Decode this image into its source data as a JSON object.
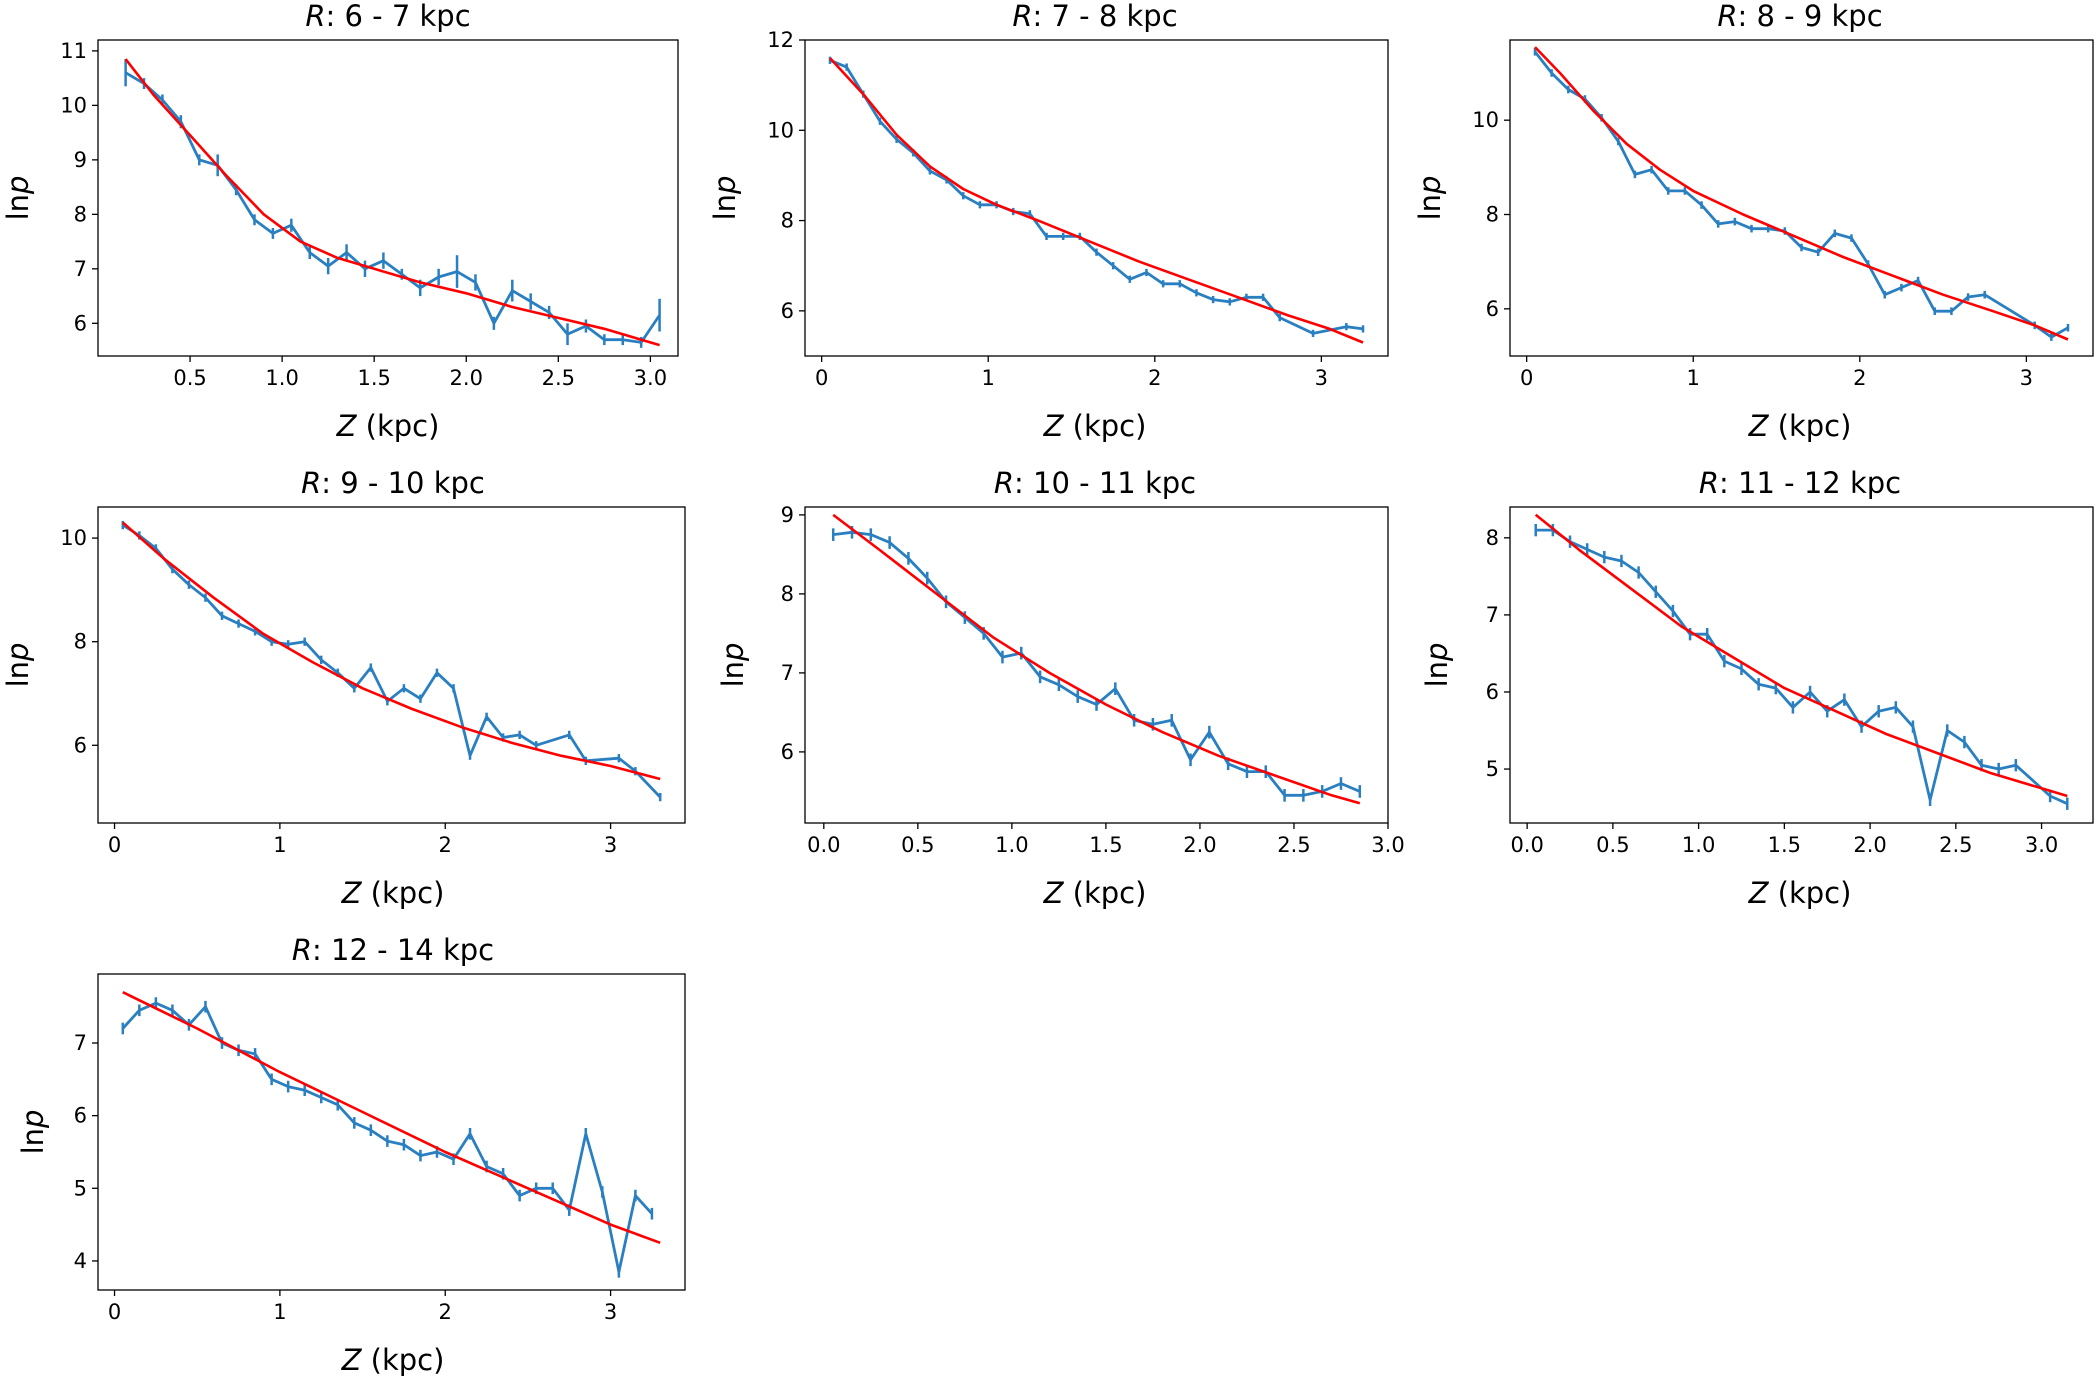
{
  "figure": {
    "xlabel_var": "Z",
    "xlabel_unit": " (kpc)",
    "ylabel_prefix": "ln",
    "ylabel_var": "p",
    "title_prefix": "R",
    "colors": {
      "data": "#2a7fc1",
      "fit": "#ff0000",
      "axes": "#000000"
    }
  },
  "chart_data": [
    {
      "type": "line",
      "title": "R: 6 - 7 kpc",
      "title_range": ": 6 - 7 kpc",
      "xlabel": "Z (kpc)",
      "ylabel": "lnp",
      "xlim": [
        0.0,
        3.15
      ],
      "ylim": [
        5.4,
        11.2
      ],
      "xticks": [
        0.5,
        1.0,
        1.5,
        2.0,
        2.5,
        3.0
      ],
      "xtick_labels": [
        "0.5",
        "1.0",
        "1.5",
        "2.0",
        "2.5",
        "3.0"
      ],
      "yticks": [
        6,
        7,
        8,
        9,
        10,
        11
      ],
      "ytick_labels": [
        "6",
        "7",
        "8",
        "9",
        "10",
        "11"
      ],
      "series": [
        {
          "name": "data",
          "x": [
            0.15,
            0.25,
            0.35,
            0.45,
            0.55,
            0.65,
            0.75,
            0.85,
            0.95,
            1.05,
            1.15,
            1.25,
            1.35,
            1.45,
            1.55,
            1.65,
            1.75,
            1.85,
            1.95,
            2.05,
            2.15,
            2.25,
            2.35,
            2.45,
            2.55,
            2.65,
            2.75,
            2.85,
            2.95,
            3.05
          ],
          "y": [
            10.6,
            10.4,
            10.1,
            9.7,
            9.0,
            8.9,
            8.45,
            7.9,
            7.65,
            7.8,
            7.3,
            7.05,
            7.3,
            7.0,
            7.15,
            6.9,
            6.65,
            6.85,
            6.95,
            6.75,
            6.0,
            6.6,
            6.4,
            6.2,
            5.8,
            5.95,
            5.7,
            5.7,
            5.65,
            6.15
          ],
          "yerr": [
            0.25,
            0.1,
            0.1,
            0.12,
            0.1,
            0.2,
            0.1,
            0.1,
            0.1,
            0.12,
            0.12,
            0.15,
            0.15,
            0.15,
            0.15,
            0.1,
            0.15,
            0.15,
            0.3,
            0.15,
            0.12,
            0.2,
            0.15,
            0.12,
            0.2,
            0.12,
            0.1,
            0.1,
            0.1,
            0.3
          ]
        },
        {
          "name": "fit",
          "x": [
            0.15,
            0.3,
            0.5,
            0.7,
            0.9,
            1.1,
            1.3,
            1.5,
            1.75,
            2.0,
            2.25,
            2.5,
            2.75,
            3.05
          ],
          "y": [
            10.85,
            10.2,
            9.45,
            8.7,
            8.0,
            7.5,
            7.2,
            7.0,
            6.75,
            6.55,
            6.3,
            6.1,
            5.9,
            5.6
          ]
        }
      ]
    },
    {
      "type": "line",
      "title": "R: 7 - 8 kpc",
      "title_range": ": 7 - 8 kpc",
      "xlabel": "Z (kpc)",
      "ylabel": "lnp",
      "xlim": [
        -0.1,
        3.4
      ],
      "ylim": [
        5.0,
        12.0
      ],
      "xticks": [
        0,
        1,
        2,
        3
      ],
      "xtick_labels": [
        "0",
        "1",
        "2",
        "3"
      ],
      "yticks": [
        6,
        8,
        10,
        12
      ],
      "ytick_labels": [
        "6",
        "8",
        "10",
        "12"
      ],
      "series": [
        {
          "name": "data",
          "x": [
            0.05,
            0.15,
            0.25,
            0.35,
            0.45,
            0.55,
            0.65,
            0.75,
            0.85,
            0.95,
            1.05,
            1.15,
            1.25,
            1.35,
            1.45,
            1.55,
            1.65,
            1.75,
            1.85,
            1.95,
            2.05,
            2.15,
            2.25,
            2.35,
            2.45,
            2.55,
            2.65,
            2.75,
            2.95,
            3.15,
            3.25
          ],
          "y": [
            11.55,
            11.4,
            10.8,
            10.2,
            9.8,
            9.5,
            9.1,
            8.9,
            8.55,
            8.35,
            8.35,
            8.2,
            8.15,
            7.65,
            7.65,
            7.65,
            7.3,
            7.0,
            6.7,
            6.85,
            6.6,
            6.6,
            6.4,
            6.25,
            6.2,
            6.3,
            6.3,
            5.85,
            5.5,
            5.65,
            5.6
          ]
        },
        {
          "name": "fit",
          "x": [
            0.05,
            0.25,
            0.45,
            0.65,
            0.85,
            1.05,
            1.3,
            1.6,
            1.9,
            2.2,
            2.5,
            2.8,
            3.05,
            3.25
          ],
          "y": [
            11.6,
            10.8,
            9.9,
            9.2,
            8.7,
            8.35,
            8.0,
            7.55,
            7.1,
            6.7,
            6.3,
            5.9,
            5.6,
            5.3
          ]
        }
      ]
    },
    {
      "type": "line",
      "title": "R: 8 - 9 kpc",
      "title_range": ": 8 - 9 kpc",
      "xlabel": "Z (kpc)",
      "ylabel": "lnp",
      "xlim": [
        -0.1,
        3.4
      ],
      "ylim": [
        5.0,
        11.7
      ],
      "xticks": [
        0,
        1,
        2,
        3
      ],
      "xtick_labels": [
        "0",
        "1",
        "2",
        "3"
      ],
      "yticks": [
        6,
        8,
        10
      ],
      "ytick_labels": [
        "6",
        "8",
        "10"
      ],
      "series": [
        {
          "name": "data",
          "x": [
            0.05,
            0.15,
            0.25,
            0.35,
            0.45,
            0.55,
            0.65,
            0.75,
            0.85,
            0.95,
            1.05,
            1.15,
            1.25,
            1.35,
            1.45,
            1.55,
            1.65,
            1.75,
            1.85,
            1.95,
            2.05,
            2.15,
            2.25,
            2.35,
            2.45,
            2.55,
            2.65,
            2.75,
            3.05,
            3.15,
            3.25
          ],
          "y": [
            11.45,
            11.0,
            10.65,
            10.45,
            10.05,
            9.55,
            8.85,
            8.95,
            8.5,
            8.5,
            8.2,
            7.8,
            7.85,
            7.7,
            7.7,
            7.65,
            7.3,
            7.2,
            7.6,
            7.5,
            6.95,
            6.3,
            6.45,
            6.6,
            5.95,
            5.95,
            6.25,
            6.3,
            5.65,
            5.4,
            5.6
          ]
        },
        {
          "name": "fit",
          "x": [
            0.05,
            0.2,
            0.4,
            0.6,
            0.8,
            1.0,
            1.3,
            1.6,
            1.9,
            2.2,
            2.5,
            2.8,
            3.05,
            3.25
          ],
          "y": [
            11.55,
            11.0,
            10.2,
            9.5,
            8.95,
            8.5,
            8.0,
            7.55,
            7.1,
            6.7,
            6.3,
            5.95,
            5.65,
            5.35
          ]
        }
      ]
    },
    {
      "type": "line",
      "title": "R: 9 - 10 kpc",
      "title_range": ": 9 - 10 kpc",
      "xlabel": "Z (kpc)",
      "ylabel": "lnp",
      "xlim": [
        -0.1,
        3.45
      ],
      "ylim": [
        4.5,
        10.6
      ],
      "xticks": [
        0,
        1,
        2,
        3
      ],
      "xtick_labels": [
        "0",
        "1",
        "2",
        "3"
      ],
      "yticks": [
        6,
        8,
        10
      ],
      "ytick_labels": [
        "6",
        "8",
        "10"
      ],
      "series": [
        {
          "name": "data",
          "x": [
            0.05,
            0.15,
            0.25,
            0.35,
            0.45,
            0.55,
            0.65,
            0.75,
            0.85,
            0.95,
            1.05,
            1.15,
            1.25,
            1.35,
            1.45,
            1.55,
            1.65,
            1.75,
            1.85,
            1.95,
            2.05,
            2.15,
            2.25,
            2.35,
            2.45,
            2.55,
            2.75,
            2.85,
            3.05,
            3.15,
            3.3
          ],
          "y": [
            10.25,
            10.05,
            9.8,
            9.4,
            9.1,
            8.85,
            8.5,
            8.35,
            8.2,
            8.0,
            7.95,
            8.0,
            7.65,
            7.4,
            7.1,
            7.5,
            6.85,
            7.1,
            6.9,
            7.4,
            7.1,
            5.8,
            6.55,
            6.15,
            6.2,
            6.0,
            6.2,
            5.7,
            5.75,
            5.5,
            5.0
          ]
        },
        {
          "name": "fit",
          "x": [
            0.05,
            0.3,
            0.6,
            0.9,
            1.2,
            1.5,
            1.8,
            2.1,
            2.4,
            2.7,
            3.0,
            3.3
          ],
          "y": [
            10.3,
            9.6,
            8.85,
            8.15,
            7.6,
            7.1,
            6.7,
            6.35,
            6.05,
            5.8,
            5.6,
            5.35
          ]
        }
      ]
    },
    {
      "type": "line",
      "title": "R: 10 - 11 kpc",
      "title_range": ": 10 - 11 kpc",
      "xlabel": "Z (kpc)",
      "ylabel": "lnp",
      "xlim": [
        -0.1,
        3.0
      ],
      "ylim": [
        5.1,
        9.1
      ],
      "xticks": [
        0.0,
        0.5,
        1.0,
        1.5,
        2.0,
        2.5,
        3.0
      ],
      "xtick_labels": [
        "0.0",
        "0.5",
        "1.0",
        "1.5",
        "2.0",
        "2.5",
        "3.0"
      ],
      "yticks": [
        6,
        7,
        8,
        9
      ],
      "ytick_labels": [
        "6",
        "7",
        "8",
        "9"
      ],
      "series": [
        {
          "name": "data",
          "x": [
            0.05,
            0.15,
            0.25,
            0.35,
            0.45,
            0.55,
            0.65,
            0.75,
            0.85,
            0.95,
            1.05,
            1.15,
            1.25,
            1.35,
            1.45,
            1.55,
            1.65,
            1.75,
            1.85,
            1.95,
            2.05,
            2.15,
            2.25,
            2.35,
            2.45,
            2.55,
            2.65,
            2.75,
            2.85
          ],
          "y": [
            8.75,
            8.78,
            8.75,
            8.65,
            8.45,
            8.2,
            7.9,
            7.7,
            7.5,
            7.2,
            7.25,
            6.95,
            6.85,
            6.7,
            6.6,
            6.8,
            6.4,
            6.35,
            6.4,
            5.9,
            6.25,
            5.85,
            5.75,
            5.75,
            5.45,
            5.45,
            5.5,
            5.6,
            5.5
          ]
        },
        {
          "name": "fit",
          "x": [
            0.05,
            0.3,
            0.6,
            0.9,
            1.2,
            1.5,
            1.8,
            2.1,
            2.4,
            2.7,
            2.85
          ],
          "y": [
            9.0,
            8.55,
            8.0,
            7.45,
            7.0,
            6.6,
            6.25,
            5.95,
            5.7,
            5.45,
            5.35
          ]
        }
      ]
    },
    {
      "type": "line",
      "title": "R: 11 - 12 kpc",
      "title_range": ": 11 - 12 kpc",
      "xlabel": "Z (kpc)",
      "ylabel": "lnp",
      "xlim": [
        -0.1,
        3.3
      ],
      "ylim": [
        4.3,
        8.4
      ],
      "xticks": [
        0.0,
        0.5,
        1.0,
        1.5,
        2.0,
        2.5,
        3.0
      ],
      "xtick_labels": [
        "0.0",
        "0.5",
        "1.0",
        "1.5",
        "2.0",
        "2.5",
        "3.0"
      ],
      "yticks": [
        5,
        6,
        7,
        8
      ],
      "ytick_labels": [
        "5",
        "6",
        "7",
        "8"
      ],
      "series": [
        {
          "name": "data",
          "x": [
            0.05,
            0.15,
            0.25,
            0.35,
            0.45,
            0.55,
            0.65,
            0.75,
            0.85,
            0.95,
            1.05,
            1.15,
            1.25,
            1.35,
            1.45,
            1.55,
            1.65,
            1.75,
            1.85,
            1.95,
            2.05,
            2.15,
            2.25,
            2.35,
            2.45,
            2.55,
            2.65,
            2.75,
            2.85,
            3.05,
            3.15
          ],
          "y": [
            8.1,
            8.1,
            7.95,
            7.85,
            7.75,
            7.7,
            7.55,
            7.3,
            7.05,
            6.75,
            6.75,
            6.4,
            6.3,
            6.1,
            6.05,
            5.8,
            6.0,
            5.75,
            5.9,
            5.55,
            5.75,
            5.8,
            5.55,
            4.6,
            5.5,
            5.35,
            5.05,
            5.0,
            5.05,
            4.65,
            4.55
          ]
        },
        {
          "name": "fit",
          "x": [
            0.05,
            0.3,
            0.6,
            0.9,
            1.2,
            1.5,
            1.8,
            2.1,
            2.4,
            2.7,
            3.0,
            3.15
          ],
          "y": [
            8.3,
            7.85,
            7.35,
            6.85,
            6.45,
            6.05,
            5.75,
            5.45,
            5.2,
            4.95,
            4.75,
            4.65
          ]
        }
      ]
    },
    {
      "type": "line",
      "title": "R: 12 - 14 kpc",
      "title_range": ": 12 - 14 kpc",
      "xlabel": "Z (kpc)",
      "ylabel": "lnp",
      "xlim": [
        -0.1,
        3.45
      ],
      "ylim": [
        3.6,
        7.95
      ],
      "xticks": [
        0,
        1,
        2,
        3
      ],
      "xtick_labels": [
        "0",
        "1",
        "2",
        "3"
      ],
      "yticks": [
        4,
        5,
        6,
        7
      ],
      "ytick_labels": [
        "4",
        "5",
        "6",
        "7"
      ],
      "series": [
        {
          "name": "data",
          "x": [
            0.05,
            0.15,
            0.25,
            0.35,
            0.45,
            0.55,
            0.65,
            0.75,
            0.85,
            0.95,
            1.05,
            1.15,
            1.25,
            1.35,
            1.45,
            1.55,
            1.65,
            1.75,
            1.85,
            1.95,
            2.05,
            2.15,
            2.25,
            2.35,
            2.45,
            2.55,
            2.65,
            2.75,
            2.85,
            2.95,
            3.05,
            3.15,
            3.25
          ],
          "y": [
            7.2,
            7.45,
            7.55,
            7.45,
            7.25,
            7.5,
            7.0,
            6.9,
            6.85,
            6.5,
            6.4,
            6.35,
            6.25,
            6.15,
            5.9,
            5.8,
            5.65,
            5.6,
            5.45,
            5.5,
            5.4,
            5.75,
            5.3,
            5.2,
            4.9,
            5.0,
            5.0,
            4.7,
            5.75,
            4.95,
            3.85,
            4.9,
            4.65
          ]
        },
        {
          "name": "fit",
          "x": [
            0.05,
            0.5,
            1.0,
            1.5,
            2.0,
            2.5,
            3.0,
            3.3
          ],
          "y": [
            7.7,
            7.2,
            6.6,
            6.05,
            5.5,
            5.0,
            4.5,
            4.25
          ]
        }
      ]
    }
  ]
}
